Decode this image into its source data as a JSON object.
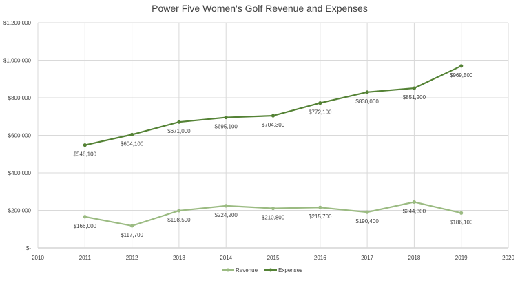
{
  "chart_data": {
    "type": "line",
    "title": "Power Five Women's Golf Revenue and Expenses",
    "xlabel": "",
    "ylabel": "",
    "x": [
      2011,
      2012,
      2013,
      2014,
      2015,
      2016,
      2017,
      2018,
      2019
    ],
    "xlim": [
      2010,
      2020
    ],
    "ylim": [
      0,
      1200000
    ],
    "x_ticks": [
      "2010",
      "2011",
      "2012",
      "2013",
      "2014",
      "2015",
      "2016",
      "2017",
      "2018",
      "2019",
      "2020"
    ],
    "y_ticks": [
      0,
      200000,
      400000,
      600000,
      800000,
      1000000,
      1200000
    ],
    "y_tick_labels": [
      "$-",
      "$200,000",
      "$400,000",
      "$600,000",
      "$800,000",
      "$1,000,000",
      "$1,200,000"
    ],
    "grid": true,
    "legend_position": "bottom",
    "series": [
      {
        "name": "Revenue",
        "color": "#9bbb82",
        "values": [
          166000,
          117700,
          198500,
          224200,
          210800,
          215700,
          190400,
          244300,
          186100
        ],
        "labels": [
          "$166,000",
          "$117,700",
          "$198,500",
          "$224,200",
          "$210,800",
          "$215,700",
          "$190,400",
          "$244,300",
          "$186,100"
        ]
      },
      {
        "name": "Expenses",
        "color": "#548235",
        "values": [
          548100,
          604100,
          671000,
          695100,
          704300,
          772100,
          830000,
          851200,
          969500
        ],
        "labels": [
          "$548,100",
          "$604,100",
          "$671,000",
          "$695,100",
          "$704,300",
          "$772,100",
          "$830,000",
          "$851,200",
          "$969,500"
        ]
      }
    ]
  }
}
